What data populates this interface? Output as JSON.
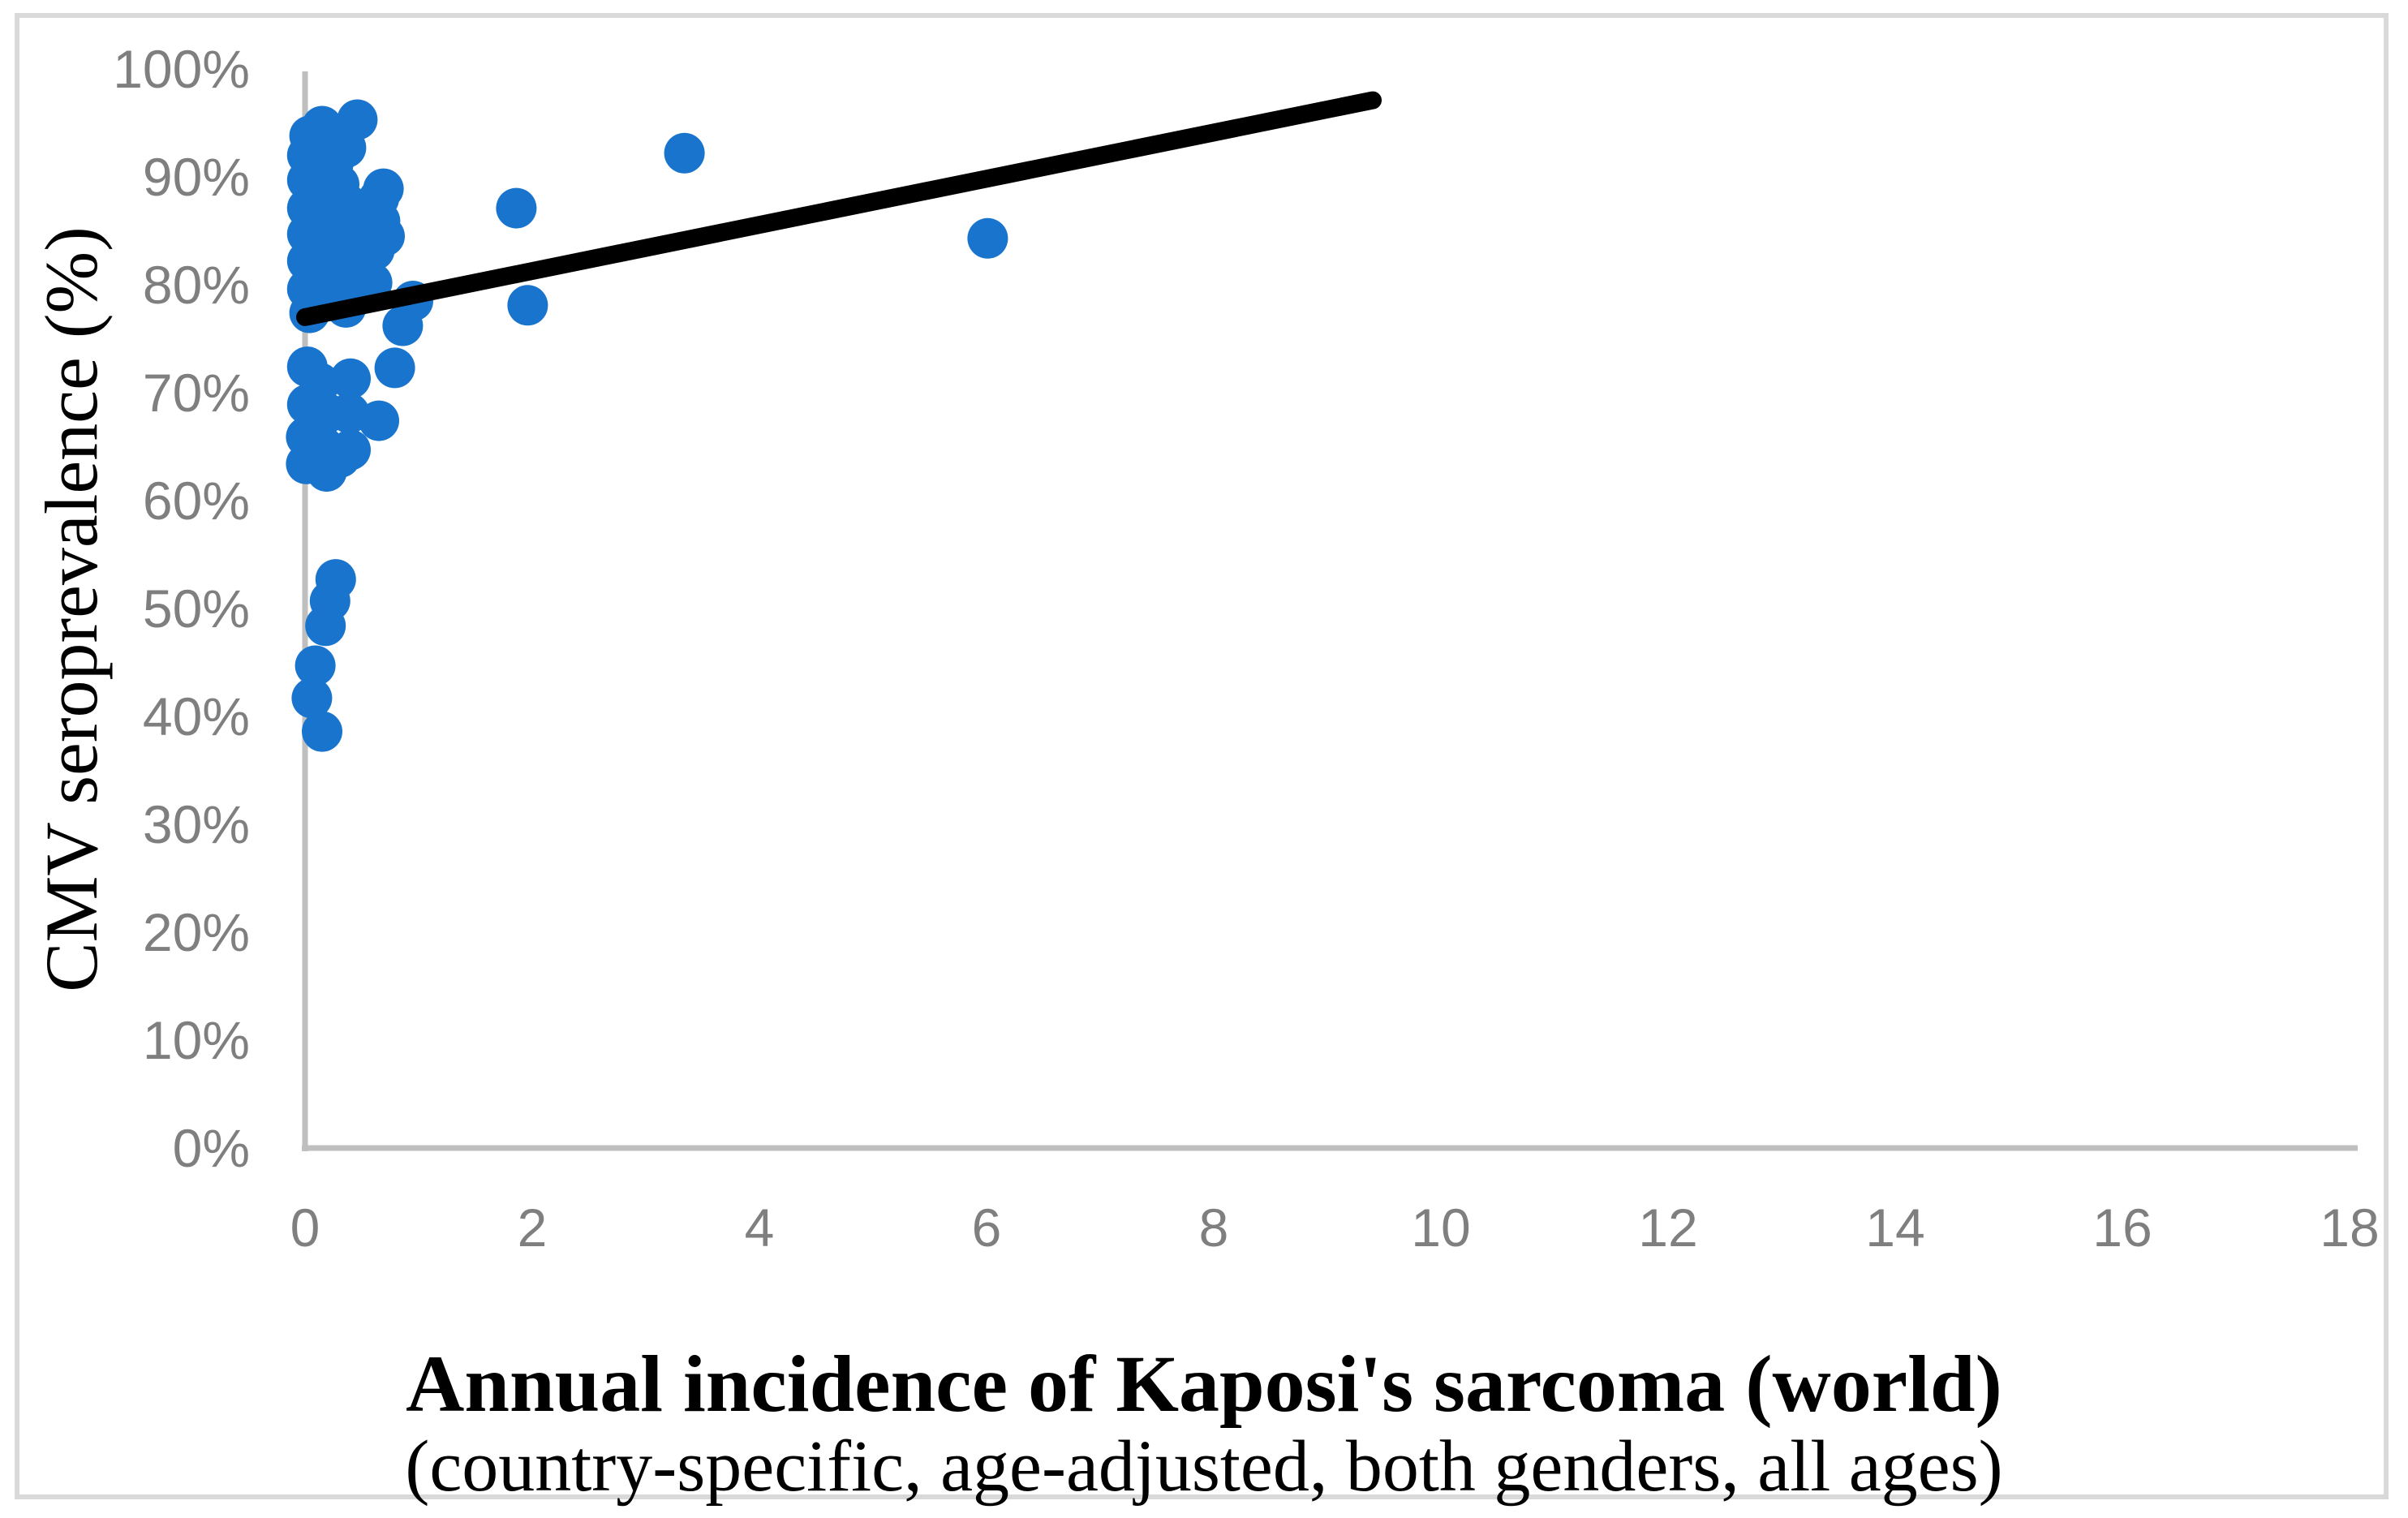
{
  "figure": {
    "background_color": "#FFFFFF",
    "border_color": "#D9D9D9"
  },
  "chart_data": {
    "type": "scatter",
    "title": "",
    "xlabel": "Annual incidence of Kaposi's sarcoma (world)",
    "xlabel_subtitle": "(country-specific, age-adjusted, both genders, all ages)",
    "ylabel": "CMV seroprevalence (%)",
    "xlim": [
      0,
      18
    ],
    "ylim_pct": [
      0,
      100
    ],
    "grid": false,
    "legend": null,
    "xticks": [
      0,
      2,
      4,
      6,
      8,
      10,
      12,
      14,
      16,
      18
    ],
    "ytick_labels": [
      "0%",
      "10%",
      "20%",
      "30%",
      "40%",
      "50%",
      "60%",
      "70%",
      "80%",
      "90%",
      "100%"
    ],
    "marker_color": "#1874CD",
    "axis_line_color": "#BFBFBF",
    "tick_label_color": "#7F7F7F",
    "trendline": {
      "x1": 0,
      "y1_pct": 77.0,
      "x2": 9.4,
      "y2_pct": 97.1,
      "color": "#000000"
    },
    "points_x_ypct": [
      [
        0.15,
        94.7
      ],
      [
        0.46,
        95.3
      ],
      [
        0.04,
        93.8
      ],
      [
        0.36,
        92.7
      ],
      [
        0.02,
        92.0
      ],
      [
        0.25,
        91.3
      ],
      [
        0.17,
        90.9
      ],
      [
        0.02,
        89.7
      ],
      [
        0.3,
        89.3
      ],
      [
        0.69,
        88.9
      ],
      [
        0.65,
        88.0
      ],
      [
        0.16,
        88.4
      ],
      [
        0.38,
        87.4
      ],
      [
        0.02,
        87.1
      ],
      [
        1.86,
        87.1
      ],
      [
        0.25,
        86.3
      ],
      [
        0.16,
        85.9
      ],
      [
        0.66,
        85.9
      ],
      [
        0.02,
        84.7
      ],
      [
        0.38,
        84.7
      ],
      [
        0.7,
        84.5
      ],
      [
        0.16,
        83.4
      ],
      [
        0.61,
        83.2
      ],
      [
        0.02,
        82.2
      ],
      [
        0.38,
        81.9
      ],
      [
        0.16,
        80.7
      ],
      [
        0.59,
        80.2
      ],
      [
        0.3,
        80.0
      ],
      [
        0.02,
        79.6
      ],
      [
        0.2,
        78.5
      ],
      [
        0.95,
        78.5
      ],
      [
        1.96,
        78.1
      ],
      [
        0.36,
        77.9
      ],
      [
        0.04,
        77.4
      ],
      [
        0.86,
        76.2
      ],
      [
        3.34,
        92.2
      ],
      [
        6.01,
        84.3
      ],
      [
        0.02,
        72.4
      ],
      [
        0.13,
        70.9
      ],
      [
        0.4,
        71.3
      ],
      [
        0.79,
        72.3
      ],
      [
        0.02,
        68.9
      ],
      [
        0.19,
        68.1
      ],
      [
        0.39,
        68.1
      ],
      [
        0.65,
        67.4
      ],
      [
        0.01,
        65.9
      ],
      [
        0.16,
        65.0
      ],
      [
        0.4,
        64.7
      ],
      [
        0.31,
        64.0
      ],
      [
        0.01,
        63.4
      ],
      [
        0.19,
        62.7
      ],
      [
        0.27,
        52.7
      ],
      [
        0.22,
        50.7
      ],
      [
        0.18,
        48.4
      ],
      [
        0.09,
        44.7
      ],
      [
        0.06,
        41.7
      ],
      [
        0.15,
        38.6
      ]
    ]
  }
}
